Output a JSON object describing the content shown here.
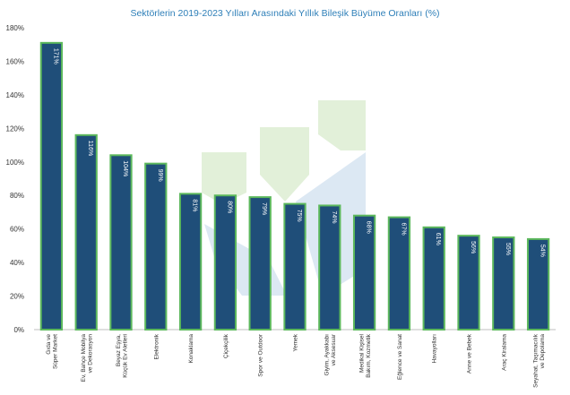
{
  "chart_data": {
    "type": "bar",
    "title": "Sektörlerin 2019-2023 Yılları Arasındaki Yıllık Bileşik Büyüme Oranları (%)",
    "xlabel": "",
    "ylabel": "",
    "ylim": [
      0,
      180
    ],
    "yticks": [
      "0%",
      "20%",
      "40%",
      "60%",
      "80%",
      "100%",
      "120%",
      "140%",
      "160%",
      "180%"
    ],
    "grid": false,
    "categories": [
      [
        "Gıda ve",
        "Süper Market"
      ],
      [
        "Ev, Bahçe Mobilya",
        "ve Dekorasyon"
      ],
      [
        "Beyaz Eşya,",
        "Küçük Ev Aletleri"
      ],
      [
        "Elektronik"
      ],
      [
        "Konaklama"
      ],
      [
        "Çiçekçilik"
      ],
      [
        "Spor ve Outdoor"
      ],
      [
        "Yemek"
      ],
      [
        "Giyim, Ayakkabı",
        "ve Aksesuar"
      ],
      [
        "Medikal Kişisel",
        "Bakım, Kozmetik"
      ],
      [
        "Eğlence ve Sanat"
      ],
      [
        "Havayolları"
      ],
      [
        "Anne ve Bebek"
      ],
      [
        "Araç Kiralama"
      ],
      [
        "Seyahat, Taşımacılık",
        "ve Depolama"
      ]
    ],
    "values": [
      171,
      116,
      104,
      99,
      81,
      80,
      79,
      75,
      74,
      68,
      67,
      61,
      56,
      55,
      54
    ],
    "data_labels": [
      "171%",
      "116%",
      "104%",
      "99%",
      "81%",
      "80%",
      "79%",
      "75%",
      "74%",
      "68%",
      "67%",
      "61%",
      "56%",
      "55%",
      "54%"
    ],
    "colors": {
      "bar_fill": "#1f4e79",
      "bar_stroke": "#5cb85c",
      "title": "#2e7fb8",
      "axis_text": "#333333",
      "watermark_green": "#e2f0d9",
      "watermark_blue": "#dce8f3"
    }
  }
}
